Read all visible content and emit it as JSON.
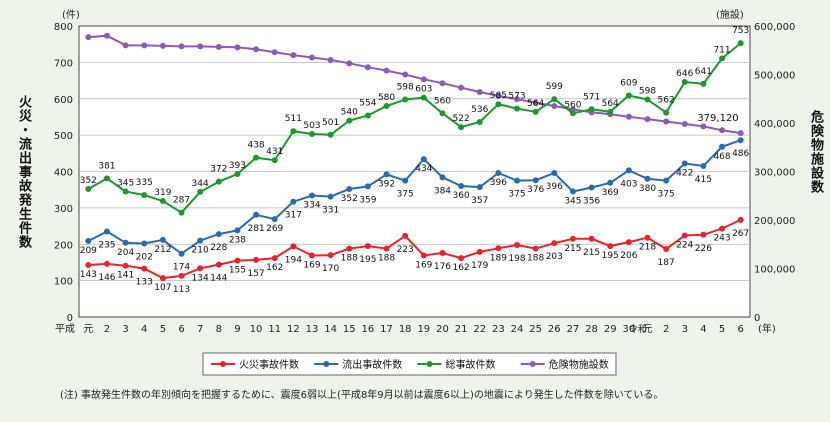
{
  "chart_data": {
    "type": "line",
    "left_unit": "(件)",
    "right_unit": "(施設)",
    "left_ylabel": "火災・流出事故発生件数",
    "right_ylabel": "危険物施設数",
    "x_unit": "(年)",
    "note": "(注) 事故発生件数の年別傾向を把握するために、震度6弱以上(平成8年9月以前は震度6以上)の地震により発生した件数を除いている。",
    "ylim_left": [
      0,
      800
    ],
    "ylim_right": [
      0,
      600000
    ],
    "left_ticks": [
      "0",
      "100",
      "200",
      "300",
      "400",
      "500",
      "600",
      "700",
      "800"
    ],
    "right_ticks": [
      "0",
      "100,000",
      "200,000",
      "300,000",
      "400,000",
      "500,000",
      "600,000"
    ],
    "era_labels": [
      "平成",
      "令和"
    ],
    "x_ticks": [
      "元",
      "2",
      "3",
      "4",
      "5",
      "6",
      "7",
      "8",
      "9",
      "10",
      "11",
      "12",
      "13",
      "14",
      "15",
      "16",
      "17",
      "18",
      "19",
      "20",
      "21",
      "22",
      "23",
      "24",
      "25",
      "26",
      "27",
      "28",
      "29",
      "30",
      "元",
      "2",
      "3",
      "4",
      "5",
      "6"
    ],
    "grid": true,
    "legend_position": "bottom",
    "series": [
      {
        "name": "火災事故件数",
        "color": "#e8242a",
        "axis": "left",
        "values": [
          143,
          146,
          141,
          133,
          107,
          113,
          134,
          144,
          155,
          157,
          162,
          194,
          169,
          170,
          188,
          195,
          188,
          223,
          169,
          176,
          162,
          179,
          189,
          198,
          188,
          203,
          215,
          215,
          195,
          206,
          218,
          187,
          224,
          226,
          243,
          267
        ],
        "labels": [
          "143",
          "146",
          "141",
          "133",
          "107",
          "113",
          "134",
          "144",
          "155",
          "157",
          "162",
          "194",
          "169",
          "170",
          "188",
          "195",
          "188",
          "223",
          "169",
          "176",
          "162",
          "179",
          "189",
          "198",
          "188",
          "203",
          "215",
          "215",
          "195",
          "206",
          "218",
          "187",
          "224",
          "226",
          "243",
          "267"
        ]
      },
      {
        "name": "流出事故件数",
        "color": "#2a6ab0",
        "axis": "left",
        "values": [
          209,
          235,
          204,
          202,
          212,
          174,
          210,
          228,
          238,
          281,
          269,
          317,
          334,
          331,
          352,
          359,
          392,
          375,
          434,
          384,
          360,
          357,
          396,
          375,
          376,
          396,
          345,
          356,
          369,
          403,
          380,
          375,
          422,
          415,
          468,
          486
        ],
        "labels": [
          "209",
          "235",
          "204",
          "202",
          "212",
          "174",
          "210",
          "228",
          "238",
          "281",
          "269",
          "317",
          "334",
          "331",
          "352",
          "359",
          "392",
          "375",
          "434",
          "384",
          "360",
          "357",
          "396",
          "375",
          "376",
          "396",
          "345",
          "356",
          "369",
          "403",
          "380",
          "375",
          "422",
          "415",
          "468",
          "486"
        ]
      },
      {
        "name": "総事故件数",
        "color": "#1a9a2a",
        "axis": "left",
        "values": [
          352,
          381,
          345,
          335,
          319,
          287,
          344,
          372,
          393,
          438,
          431,
          511,
          503,
          501,
          540,
          554,
          580,
          598,
          603,
          560,
          522,
          536,
          585,
          573,
          564,
          599,
          560,
          571,
          564,
          609,
          598,
          562,
          646,
          641,
          711,
          753
        ],
        "labels": [
          "352",
          "381",
          "345",
          "335",
          "319",
          "287",
          "344",
          "372",
          "393",
          "438",
          "431",
          "511",
          "503",
          "501",
          "540",
          "554",
          "580",
          "598",
          "603",
          "560",
          "522",
          "536",
          "585",
          "573",
          "564",
          "599",
          "560",
          "571",
          "564",
          "609",
          "598",
          "562",
          "646",
          "641",
          "711",
          "753"
        ]
      },
      {
        "name": "危険物施設数",
        "color": "#8e5ab8",
        "axis": "right",
        "values": [
          577000,
          580000,
          560000,
          560000,
          559000,
          558000,
          558000,
          557000,
          556000,
          552000,
          546000,
          540000,
          535000,
          530000,
          523000,
          515000,
          508000,
          500000,
          490000,
          482000,
          473000,
          464000,
          456000,
          449000,
          442000,
          435000,
          428000,
          422000,
          418000,
          413000,
          408000,
          403000,
          398000,
          393000,
          385000,
          379120
        ],
        "labels": [
          "379,120"
        ]
      }
    ]
  }
}
